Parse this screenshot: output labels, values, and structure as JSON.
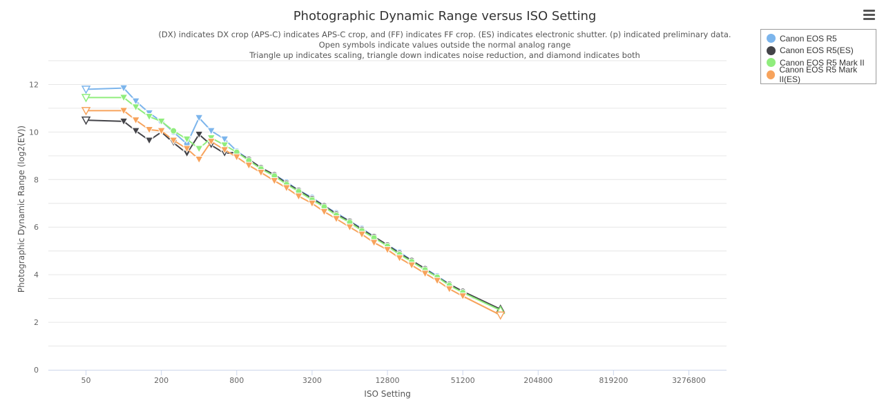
{
  "chart_data": {
    "type": "line",
    "title": "Photographic Dynamic Range versus ISO Setting",
    "subtitle_lines": [
      "(DX) indicates DX crop (APS-C) indicates APS-C crop, and (FF) indicates FF crop. (ES) indicates electronic shutter. (p) indicated preliminary data.",
      "Open symbols indicate values outside the normal analog range",
      "Triangle up indicates scaling, triangle down indicates noise reduction, and diamond indicates both"
    ],
    "xlabel": "ISO Setting",
    "ylabel": "Photographic Dynamic Range (log2(EV))",
    "x_scale": "log2",
    "xlim": [
      25,
      6553600
    ],
    "x_ticks": [
      50,
      200,
      800,
      3200,
      12800,
      51200,
      204800,
      819200,
      3276800
    ],
    "ylim": [
      0,
      13
    ],
    "y_ticks": [
      0,
      2,
      4,
      6,
      8,
      10,
      12
    ],
    "grid": true,
    "legend_position": "top-right",
    "series": [
      {
        "name": "Canon EOS R5",
        "color": "#7cb5ec",
        "points": [
          {
            "iso": 50,
            "dr": 11.8,
            "marker": "tri-down-open"
          },
          {
            "iso": 100,
            "dr": 11.85,
            "marker": "tri-down"
          },
          {
            "iso": 125,
            "dr": 11.3,
            "marker": "tri-down"
          },
          {
            "iso": 160,
            "dr": 10.8,
            "marker": "tri-down"
          },
          {
            "iso": 200,
            "dr": 10.45,
            "marker": "circle"
          },
          {
            "iso": 250,
            "dr": 10.0,
            "marker": "circle"
          },
          {
            "iso": 320,
            "dr": 9.5,
            "marker": "circle"
          },
          {
            "iso": 400,
            "dr": 10.6,
            "marker": "tri-down"
          },
          {
            "iso": 500,
            "dr": 10.05,
            "marker": "tri-down"
          },
          {
            "iso": 640,
            "dr": 9.7,
            "marker": "tri-down"
          },
          {
            "iso": 800,
            "dr": 9.2,
            "marker": "circle"
          },
          {
            "iso": 1000,
            "dr": 8.85,
            "marker": "circle"
          },
          {
            "iso": 1250,
            "dr": 8.5,
            "marker": "circle"
          },
          {
            "iso": 1600,
            "dr": 8.2,
            "marker": "circle"
          },
          {
            "iso": 2000,
            "dr": 7.9,
            "marker": "circle"
          },
          {
            "iso": 2500,
            "dr": 7.55,
            "marker": "circle"
          },
          {
            "iso": 3200,
            "dr": 7.25,
            "marker": "circle"
          },
          {
            "iso": 4000,
            "dr": 6.9,
            "marker": "circle"
          },
          {
            "iso": 5000,
            "dr": 6.6,
            "marker": "circle"
          },
          {
            "iso": 6400,
            "dr": 6.25,
            "marker": "circle"
          },
          {
            "iso": 8000,
            "dr": 5.95,
            "marker": "circle"
          },
          {
            "iso": 10000,
            "dr": 5.6,
            "marker": "circle"
          },
          {
            "iso": 12800,
            "dr": 5.25,
            "marker": "circle"
          },
          {
            "iso": 16000,
            "dr": 4.95,
            "marker": "circle"
          },
          {
            "iso": 20000,
            "dr": 4.6,
            "marker": "circle"
          },
          {
            "iso": 25600,
            "dr": 4.25,
            "marker": "circle"
          },
          {
            "iso": 32000,
            "dr": 3.95,
            "marker": "circle"
          },
          {
            "iso": 40000,
            "dr": 3.6,
            "marker": "circle"
          },
          {
            "iso": 51200,
            "dr": 3.3,
            "marker": "circle"
          },
          {
            "iso": 102400,
            "dr": 2.5,
            "marker": "tri-up-open"
          }
        ]
      },
      {
        "name": "Canon EOS R5(ES)",
        "color": "#434348",
        "points": [
          {
            "iso": 50,
            "dr": 10.5,
            "marker": "tri-down-open"
          },
          {
            "iso": 100,
            "dr": 10.45,
            "marker": "tri-down"
          },
          {
            "iso": 125,
            "dr": 10.05,
            "marker": "tri-down"
          },
          {
            "iso": 160,
            "dr": 9.65,
            "marker": "tri-down"
          },
          {
            "iso": 200,
            "dr": 10.0,
            "marker": "tri-down"
          },
          {
            "iso": 250,
            "dr": 9.55,
            "marker": "tri-down"
          },
          {
            "iso": 320,
            "dr": 9.1,
            "marker": "tri-down"
          },
          {
            "iso": 400,
            "dr": 9.9,
            "marker": "tri-down"
          },
          {
            "iso": 500,
            "dr": 9.45,
            "marker": "tri-down"
          },
          {
            "iso": 640,
            "dr": 9.1,
            "marker": "tri-down"
          },
          {
            "iso": 800,
            "dr": 9.15,
            "marker": "circle"
          },
          {
            "iso": 1000,
            "dr": 8.85,
            "marker": "circle"
          },
          {
            "iso": 1250,
            "dr": 8.5,
            "marker": "circle"
          },
          {
            "iso": 1600,
            "dr": 8.2,
            "marker": "circle"
          },
          {
            "iso": 2000,
            "dr": 7.85,
            "marker": "circle"
          },
          {
            "iso": 2500,
            "dr": 7.55,
            "marker": "circle"
          },
          {
            "iso": 3200,
            "dr": 7.2,
            "marker": "circle"
          },
          {
            "iso": 4000,
            "dr": 6.9,
            "marker": "circle"
          },
          {
            "iso": 5000,
            "dr": 6.55,
            "marker": "circle"
          },
          {
            "iso": 6400,
            "dr": 6.25,
            "marker": "circle"
          },
          {
            "iso": 8000,
            "dr": 5.9,
            "marker": "circle"
          },
          {
            "iso": 10000,
            "dr": 5.6,
            "marker": "circle"
          },
          {
            "iso": 12800,
            "dr": 5.25,
            "marker": "circle"
          },
          {
            "iso": 16000,
            "dr": 4.9,
            "marker": "circle"
          },
          {
            "iso": 20000,
            "dr": 4.6,
            "marker": "circle"
          },
          {
            "iso": 25600,
            "dr": 4.25,
            "marker": "circle"
          },
          {
            "iso": 32000,
            "dr": 3.9,
            "marker": "circle"
          },
          {
            "iso": 40000,
            "dr": 3.6,
            "marker": "circle"
          },
          {
            "iso": 51200,
            "dr": 3.3,
            "marker": "circle"
          },
          {
            "iso": 102400,
            "dr": 2.55,
            "marker": "tri-up-open"
          }
        ]
      },
      {
        "name": "Canon EOS R5 Mark II",
        "color": "#90ed7d",
        "points": [
          {
            "iso": 50,
            "dr": 11.45,
            "marker": "tri-down-open"
          },
          {
            "iso": 100,
            "dr": 11.45,
            "marker": "tri-down"
          },
          {
            "iso": 125,
            "dr": 11.05,
            "marker": "tri-down"
          },
          {
            "iso": 160,
            "dr": 10.65,
            "marker": "tri-down"
          },
          {
            "iso": 200,
            "dr": 10.45,
            "marker": "tri-down"
          },
          {
            "iso": 250,
            "dr": 10.05,
            "marker": "circle"
          },
          {
            "iso": 320,
            "dr": 9.7,
            "marker": "tri-down"
          },
          {
            "iso": 400,
            "dr": 9.3,
            "marker": "tri-down"
          },
          {
            "iso": 500,
            "dr": 9.75,
            "marker": "tri-down"
          },
          {
            "iso": 640,
            "dr": 9.45,
            "marker": "tri-down"
          },
          {
            "iso": 800,
            "dr": 9.15,
            "marker": "circle"
          },
          {
            "iso": 1000,
            "dr": 8.8,
            "marker": "circle"
          },
          {
            "iso": 1250,
            "dr": 8.45,
            "marker": "circle"
          },
          {
            "iso": 1600,
            "dr": 8.15,
            "marker": "circle"
          },
          {
            "iso": 2000,
            "dr": 7.8,
            "marker": "circle"
          },
          {
            "iso": 2500,
            "dr": 7.5,
            "marker": "circle"
          },
          {
            "iso": 3200,
            "dr": 7.15,
            "marker": "circle"
          },
          {
            "iso": 4000,
            "dr": 6.85,
            "marker": "circle"
          },
          {
            "iso": 5000,
            "dr": 6.5,
            "marker": "circle"
          },
          {
            "iso": 6400,
            "dr": 6.2,
            "marker": "circle"
          },
          {
            "iso": 8000,
            "dr": 5.85,
            "marker": "circle"
          },
          {
            "iso": 10000,
            "dr": 5.55,
            "marker": "circle"
          },
          {
            "iso": 12800,
            "dr": 5.2,
            "marker": "circle"
          },
          {
            "iso": 16000,
            "dr": 4.85,
            "marker": "circle"
          },
          {
            "iso": 20000,
            "dr": 4.55,
            "marker": "circle"
          },
          {
            "iso": 25600,
            "dr": 4.2,
            "marker": "circle"
          },
          {
            "iso": 32000,
            "dr": 3.9,
            "marker": "circle"
          },
          {
            "iso": 40000,
            "dr": 3.55,
            "marker": "circle"
          },
          {
            "iso": 51200,
            "dr": 3.25,
            "marker": "circle"
          },
          {
            "iso": 102400,
            "dr": 2.5,
            "marker": "tri-up-open"
          }
        ]
      },
      {
        "name": "Canon EOS R5 Mark II(ES)",
        "color": "#f7a35c",
        "points": [
          {
            "iso": 50,
            "dr": 10.9,
            "marker": "tri-down-open"
          },
          {
            "iso": 100,
            "dr": 10.9,
            "marker": "tri-down"
          },
          {
            "iso": 125,
            "dr": 10.5,
            "marker": "tri-down"
          },
          {
            "iso": 160,
            "dr": 10.1,
            "marker": "tri-down"
          },
          {
            "iso": 200,
            "dr": 10.05,
            "marker": "tri-down"
          },
          {
            "iso": 250,
            "dr": 9.65,
            "marker": "tri-down"
          },
          {
            "iso": 320,
            "dr": 9.3,
            "marker": "tri-down"
          },
          {
            "iso": 400,
            "dr": 8.85,
            "marker": "tri-down"
          },
          {
            "iso": 500,
            "dr": 9.6,
            "marker": "tri-down"
          },
          {
            "iso": 640,
            "dr": 9.25,
            "marker": "tri-down"
          },
          {
            "iso": 800,
            "dr": 8.95,
            "marker": "tri-down"
          },
          {
            "iso": 1000,
            "dr": 8.6,
            "marker": "tri-down"
          },
          {
            "iso": 1250,
            "dr": 8.3,
            "marker": "tri-down"
          },
          {
            "iso": 1600,
            "dr": 7.95,
            "marker": "tri-down"
          },
          {
            "iso": 2000,
            "dr": 7.65,
            "marker": "tri-down"
          },
          {
            "iso": 2500,
            "dr": 7.3,
            "marker": "tri-down"
          },
          {
            "iso": 3200,
            "dr": 7.0,
            "marker": "tri-down"
          },
          {
            "iso": 4000,
            "dr": 6.65,
            "marker": "tri-down"
          },
          {
            "iso": 5000,
            "dr": 6.35,
            "marker": "tri-down"
          },
          {
            "iso": 6400,
            "dr": 6.0,
            "marker": "tri-down"
          },
          {
            "iso": 8000,
            "dr": 5.7,
            "marker": "tri-down"
          },
          {
            "iso": 10000,
            "dr": 5.35,
            "marker": "tri-down"
          },
          {
            "iso": 12800,
            "dr": 5.05,
            "marker": "tri-down"
          },
          {
            "iso": 16000,
            "dr": 4.7,
            "marker": "tri-down"
          },
          {
            "iso": 20000,
            "dr": 4.4,
            "marker": "tri-down"
          },
          {
            "iso": 25600,
            "dr": 4.05,
            "marker": "tri-down"
          },
          {
            "iso": 32000,
            "dr": 3.75,
            "marker": "tri-down"
          },
          {
            "iso": 40000,
            "dr": 3.4,
            "marker": "tri-down"
          },
          {
            "iso": 51200,
            "dr": 3.1,
            "marker": "tri-down"
          },
          {
            "iso": 102400,
            "dr": 2.3,
            "marker": "tri-down-open"
          }
        ]
      }
    ]
  },
  "menu": {
    "icon": "hamburger-menu-icon"
  }
}
